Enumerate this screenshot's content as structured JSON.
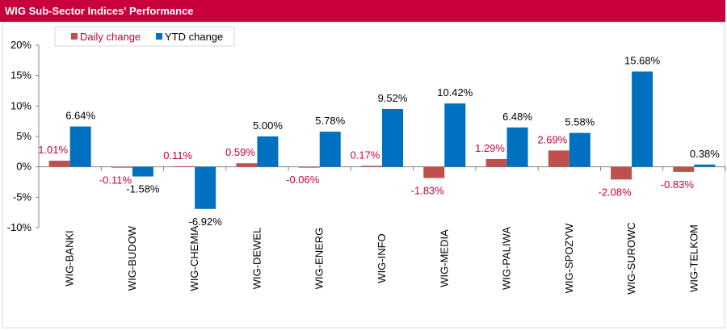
{
  "chart_data": {
    "type": "bar",
    "title": "WIG Sub-Sector Indices' Performance",
    "categories": [
      "WIG-BANKI",
      "WIG-BUDOW",
      "WIG-CHEMIA",
      "WIG-DEWEL",
      "WIG-ENERG",
      "WIG-INFO",
      "WIG-MEDIA",
      "WIG-PALIWA",
      "WIG-SPOZYW",
      "WIG-SUROWC",
      "WIG-TELKOM"
    ],
    "series": [
      {
        "name": "Daily change",
        "color": "#c0504d",
        "values": [
          1.01,
          -0.11,
          0.11,
          0.59,
          -0.06,
          0.17,
          -1.83,
          1.29,
          2.69,
          -2.08,
          -0.83
        ],
        "labels": [
          "1.01%",
          "-0.11%",
          "0.11%",
          "0.59%",
          "-0.06%",
          "0.17%",
          "-1.83%",
          "1.29%",
          "2.69%",
          "-2.08%",
          "-0.83%"
        ]
      },
      {
        "name": "YTD change",
        "color": "#0070c0",
        "values": [
          6.64,
          -1.58,
          -6.92,
          5.0,
          5.78,
          9.52,
          10.42,
          6.48,
          5.58,
          15.68,
          0.38
        ],
        "labels": [
          "6.64%",
          "-1.58%",
          "-6.92%",
          "5.00%",
          "5.78%",
          "9.52%",
          "10.42%",
          "6.48%",
          "5.58%",
          "15.68%",
          "0.38%"
        ]
      }
    ],
    "ylim": [
      -10,
      20
    ],
    "yticks": [
      -10,
      -5,
      0,
      5,
      10,
      15,
      20
    ],
    "ytick_labels": [
      "-10%",
      "-5%",
      "0%",
      "5%",
      "10%",
      "15%",
      "20%"
    ],
    "daily_label_color": "#c8003c",
    "legend_position": "top-left",
    "grid": false
  }
}
